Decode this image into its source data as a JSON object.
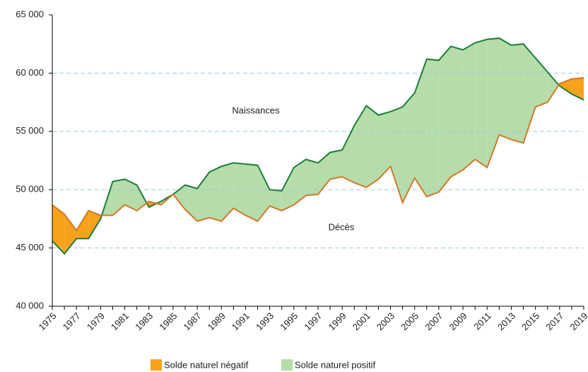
{
  "chart_data": {
    "type": "area-difference",
    "categories": [
      "1975",
      null,
      "1977",
      null,
      "1979",
      null,
      "1981",
      null,
      "1983",
      null,
      "1985",
      null,
      "1987",
      null,
      "1989",
      null,
      "1991",
      null,
      "1993",
      null,
      "1995",
      null,
      "1997",
      null,
      "1999",
      null,
      "2001",
      null,
      "2003",
      null,
      "2005",
      null,
      "2007",
      null,
      "2009",
      null,
      "2011",
      null,
      "2013",
      null,
      "2015",
      null,
      "2017",
      null,
      "2019"
    ],
    "series": [
      {
        "name": "Naissances",
        "color": "#1e7b3c",
        "values": [
          45600,
          44500,
          45800,
          45800,
          47500,
          50700,
          50900,
          50400,
          48500,
          49000,
          49600,
          50400,
          50100,
          51500,
          52000,
          52300,
          52200,
          52100,
          50000,
          49900,
          51900,
          52600,
          52300,
          53200,
          53400,
          55500,
          57200,
          56400,
          56700,
          57100,
          58300,
          61200,
          61100,
          62300,
          62000,
          62600,
          62900,
          63000,
          62400,
          62500,
          61300,
          60100,
          58900,
          58200,
          57700
        ]
      },
      {
        "name": "Décès",
        "color": "#d0782a",
        "values": [
          48700,
          47900,
          46500,
          48200,
          47800,
          47800,
          48700,
          48200,
          49000,
          48700,
          49600,
          48300,
          47300,
          47600,
          47300,
          48400,
          47800,
          47300,
          48600,
          48200,
          48700,
          49500,
          49600,
          50900,
          51100,
          50600,
          50200,
          50900,
          52000,
          48900,
          51000,
          49400,
          49800,
          51100,
          51700,
          52600,
          51900,
          54700,
          54300,
          54000,
          57100,
          57500,
          59100,
          59500,
          59600
        ]
      }
    ],
    "legend": [
      {
        "label": "Solde naturel négatif",
        "color": "#f7a21b"
      },
      {
        "label": "Solde naturel positif",
        "color": "#b5dca9"
      }
    ],
    "ylim": [
      40000,
      65000
    ],
    "yticks": [
      {
        "value": 40000,
        "label": "40 000"
      },
      {
        "value": 45000,
        "label": "45 000"
      },
      {
        "value": 50000,
        "label": "50 000"
      },
      {
        "value": 55000,
        "label": "55 000"
      },
      {
        "value": 60000,
        "label": "60 000"
      },
      {
        "value": 65000,
        "label": "65 000"
      }
    ],
    "grid": true
  }
}
